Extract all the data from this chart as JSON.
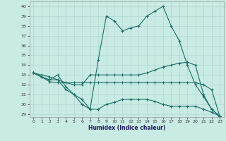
{
  "xlabel": "Humidex (Indice chaleur)",
  "xlim": [
    -0.5,
    23.5
  ],
  "ylim": [
    28.7,
    40.5
  ],
  "yticks": [
    29,
    30,
    31,
    32,
    33,
    34,
    35,
    36,
    37,
    38,
    39,
    40
  ],
  "xticks": [
    0,
    1,
    2,
    3,
    4,
    5,
    6,
    7,
    8,
    9,
    10,
    11,
    12,
    13,
    14,
    15,
    16,
    17,
    18,
    19,
    20,
    21,
    22,
    23
  ],
  "bg_color": "#c8ebe4",
  "grid_color": "#b0d8d0",
  "line_color": "#1a6e64",
  "series_main": [
    33.2,
    32.8,
    32.5,
    33.0,
    31.8,
    31.0,
    30.0,
    29.5,
    34.5,
    39.0,
    38.5,
    37.5,
    37.8,
    38.0,
    39.0,
    39.5,
    40.0,
    38.0,
    36.5,
    34.0,
    32.0,
    30.8,
    29.5,
    28.8
  ],
  "series_lin1": [
    33.2,
    32.8,
    32.5,
    32.5,
    32.2,
    32.0,
    32.0,
    33.0,
    33.0,
    33.0,
    33.0,
    33.0,
    33.0,
    33.0,
    33.2,
    33.5,
    33.8,
    34.0,
    34.2,
    34.3,
    34.0,
    31.0,
    29.5,
    28.8
  ],
  "series_lin2": [
    33.2,
    32.8,
    32.3,
    32.2,
    32.2,
    32.2,
    32.2,
    32.2,
    32.2,
    32.2,
    32.2,
    32.2,
    32.2,
    32.2,
    32.2,
    32.2,
    32.2,
    32.2,
    32.2,
    32.2,
    32.2,
    32.0,
    31.5,
    28.8
  ],
  "series_lin3": [
    33.2,
    33.0,
    32.8,
    32.5,
    31.5,
    31.0,
    30.5,
    29.5,
    29.5,
    30.0,
    30.2,
    30.5,
    30.5,
    30.5,
    30.5,
    30.3,
    30.0,
    29.8,
    29.8,
    29.8,
    29.8,
    29.5,
    29.2,
    28.8
  ]
}
